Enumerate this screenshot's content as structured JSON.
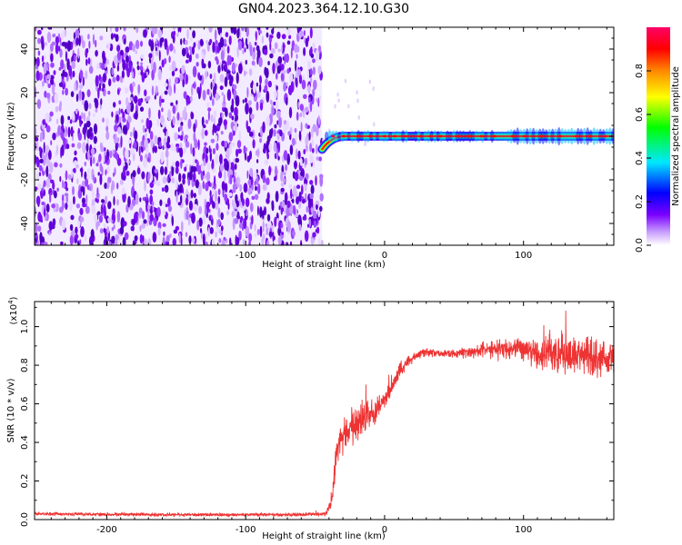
{
  "figure": {
    "title": "GN04.2023.364.12.10.G30",
    "colors": {
      "axis": "#000000",
      "snr_line": "#ee3333",
      "background": "#ffffff"
    }
  },
  "chart_data": [
    {
      "type": "heatmap",
      "name": "spectrogram",
      "xlabel": "Height of straight line (km)",
      "ylabel": "Frequency (Hz)",
      "xlim": [
        -252,
        165
      ],
      "ylim": [
        -50,
        50
      ],
      "xticks": [
        -200,
        -100,
        0,
        100
      ],
      "yticks": [
        -40,
        -20,
        0,
        20,
        40
      ],
      "grid": false,
      "colormap": "rainbow (white-purple-blue-cyan-green-yellow-orange-red-magenta)",
      "noise_region_x": [
        -252,
        -45
      ],
      "signal_line": {
        "x_start": -45,
        "x_end": 165,
        "frequency_hz": 0,
        "start_frequency_hz": -6
      },
      "colorbar": {
        "label": "Normalized spectral amplitude",
        "range": [
          0.0,
          1.0
        ],
        "ticks": [
          0.0,
          0.2,
          0.4,
          0.6,
          0.8
        ],
        "tick_labels": [
          "0.0",
          "0.2",
          "0.4",
          "0.6",
          "0.8"
        ]
      }
    },
    {
      "type": "line",
      "name": "snr",
      "xlabel": "Height of straight line (km)",
      "ylabel": "SNR (10 * v/v)",
      "y_multiplier_label": "(x10",
      "y_multiplier_exp": "4",
      "y_multiplier_suffix": ")",
      "xlim": [
        -252,
        165
      ],
      "ylim": [
        0,
        1.13
      ],
      "xticks": [
        -200,
        -100,
        0,
        100
      ],
      "yticks": [
        0.0,
        0.2,
        0.4,
        0.6,
        0.8,
        1.0
      ],
      "ytick_labels": [
        "0.0",
        "0.2",
        "0.4",
        "0.6",
        "0.8",
        "1.0"
      ],
      "grid": false,
      "series": [
        {
          "color": "#ee3333",
          "x": [
            -252,
            -150,
            -60,
            -42,
            -38,
            -34,
            -30,
            -25,
            -20,
            -15,
            -10,
            -5,
            0,
            5,
            10,
            15,
            20,
            25,
            30,
            40,
            50,
            60,
            70,
            80,
            90,
            100,
            110,
            120,
            130,
            140,
            150,
            160,
            165
          ],
          "y": [
            0.03,
            0.025,
            0.025,
            0.03,
            0.1,
            0.38,
            0.44,
            0.47,
            0.5,
            0.55,
            0.55,
            0.57,
            0.62,
            0.68,
            0.76,
            0.81,
            0.84,
            0.86,
            0.87,
            0.86,
            0.86,
            0.87,
            0.88,
            0.89,
            0.88,
            0.89,
            0.87,
            0.88,
            0.86,
            0.85,
            0.83,
            0.84,
            0.85
          ],
          "noise": [
            0.008,
            0.008,
            0.008,
            0.01,
            0.04,
            0.08,
            0.08,
            0.09,
            0.09,
            0.08,
            0.07,
            0.06,
            0.05,
            0.05,
            0.04,
            0.03,
            0.025,
            0.02,
            0.02,
            0.02,
            0.025,
            0.03,
            0.035,
            0.045,
            0.055,
            0.06,
            0.08,
            0.1,
            0.11,
            0.11,
            0.1,
            0.09,
            0.08
          ]
        }
      ]
    }
  ]
}
